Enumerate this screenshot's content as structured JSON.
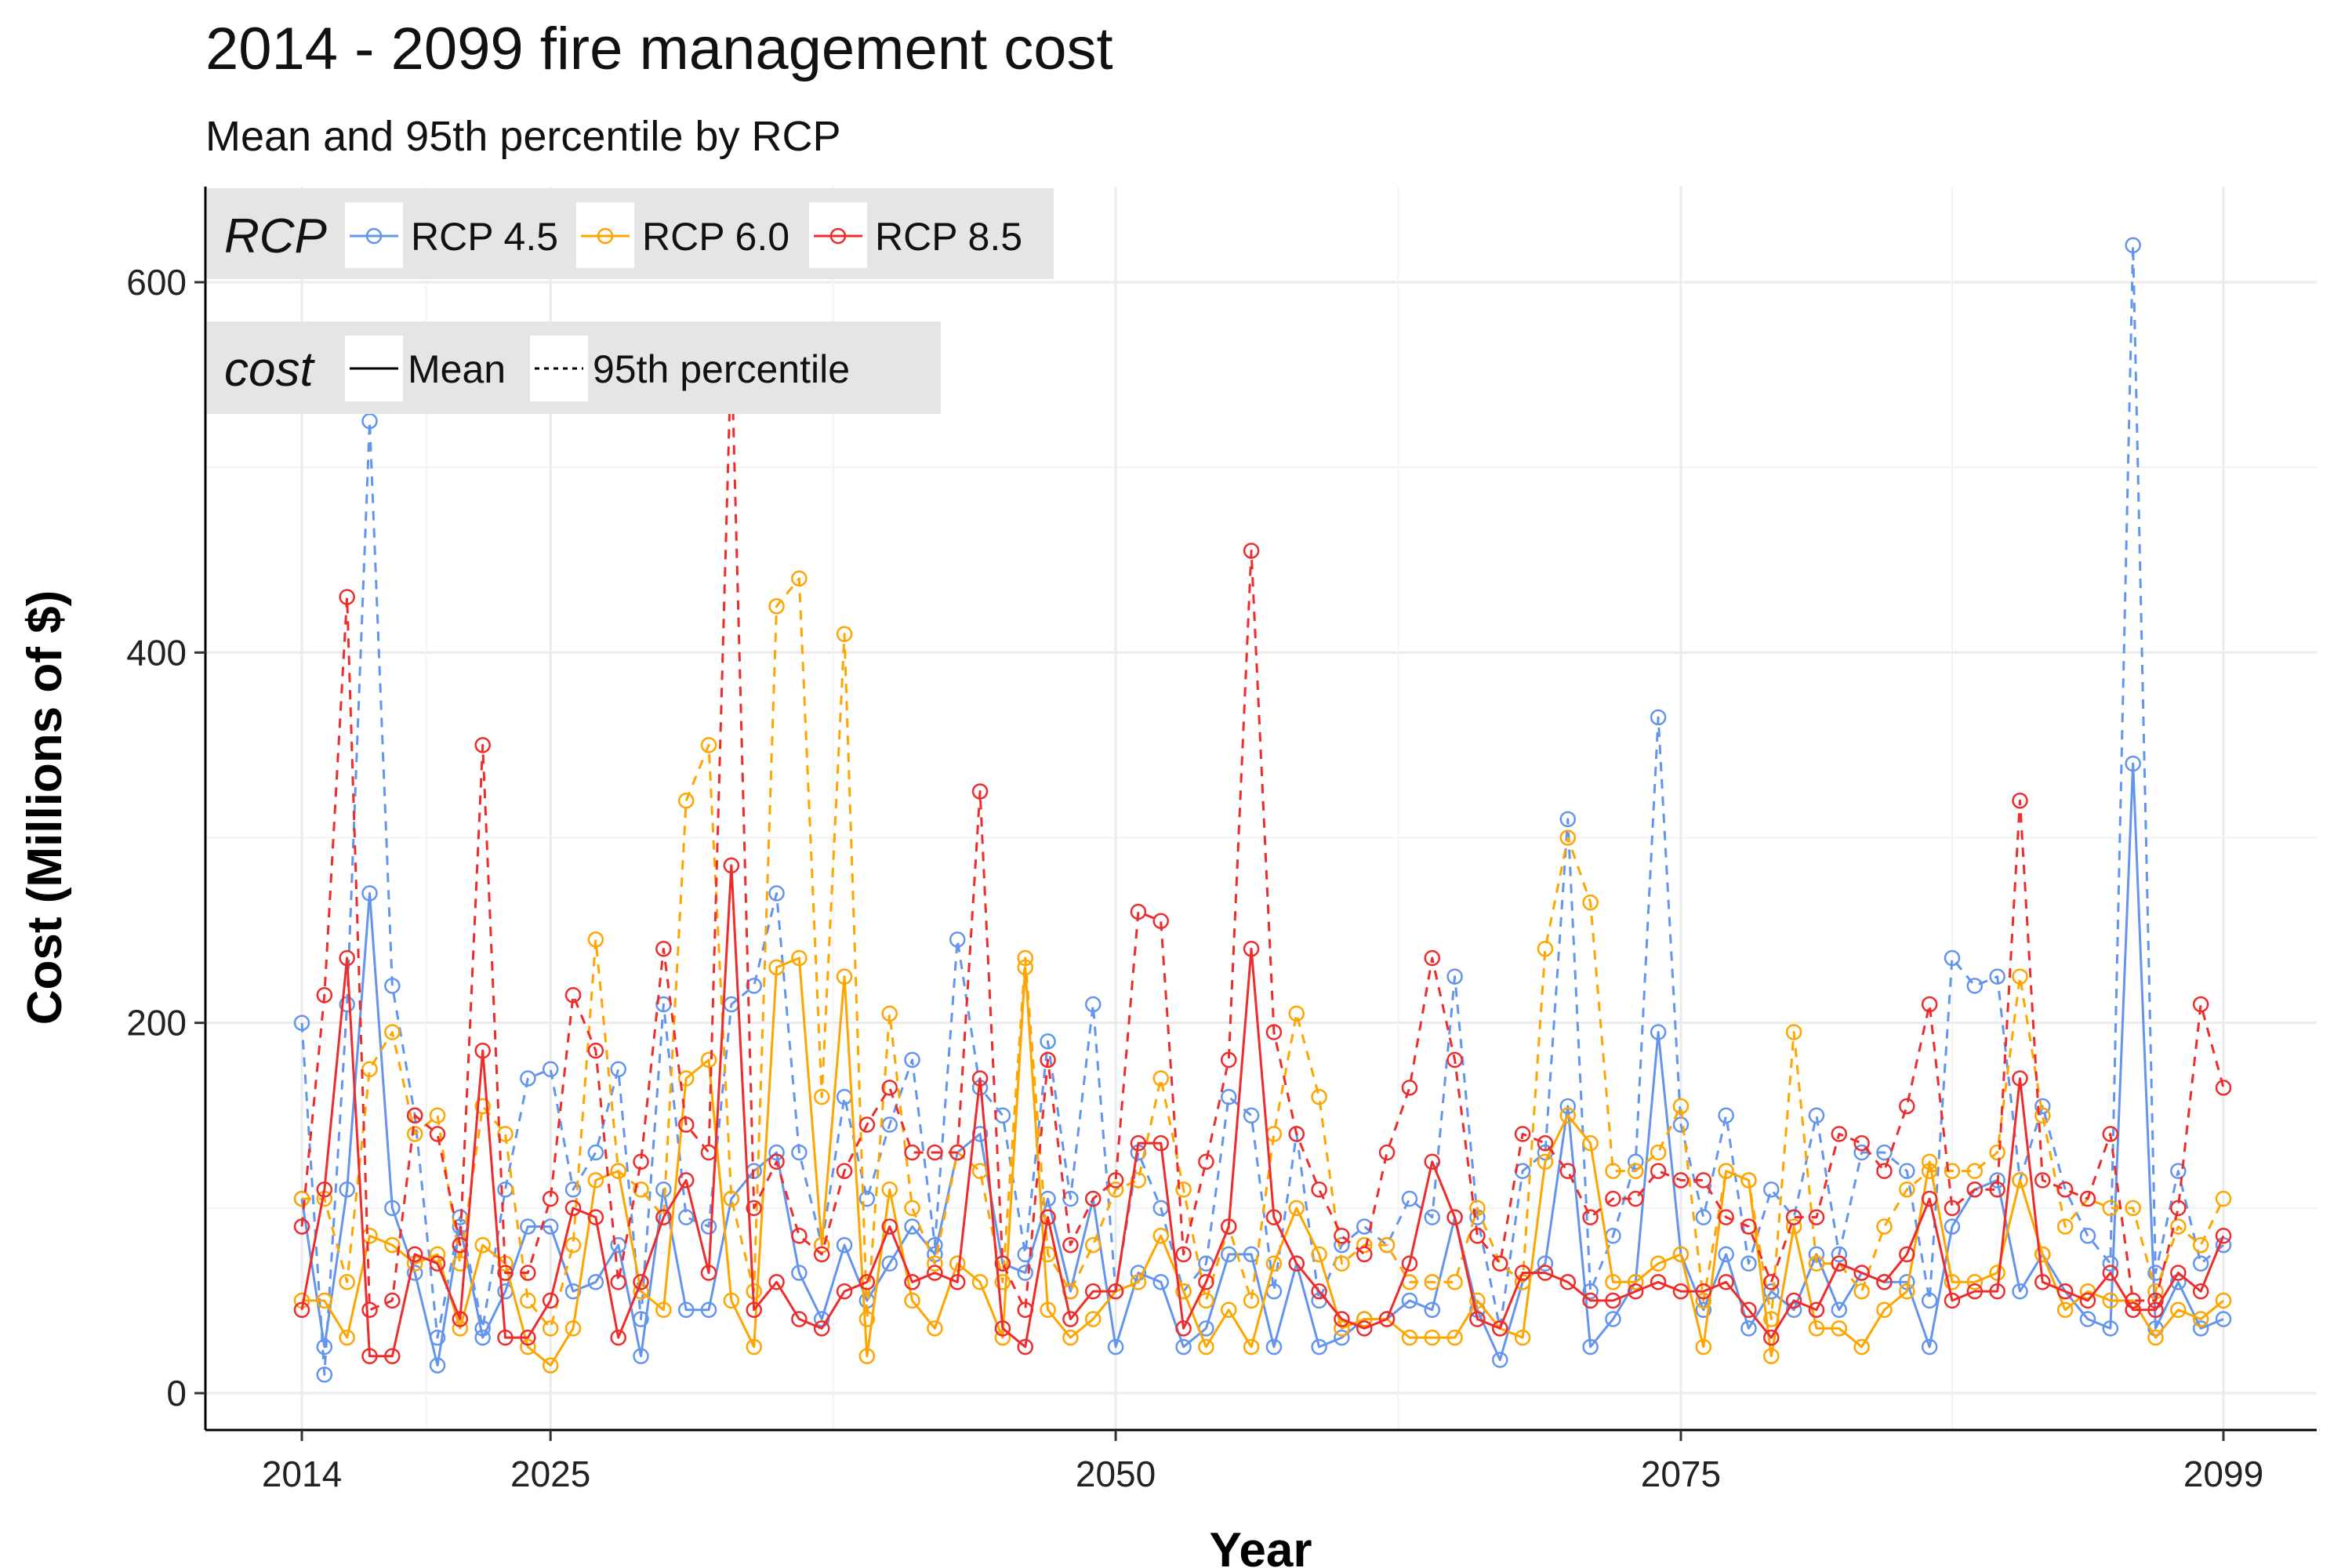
{
  "chart_data": {
    "type": "line",
    "title": "2014 - 2099 fire management cost",
    "subtitle": "Mean and 95th percentile by RCP",
    "xlabel": "Year",
    "ylabel": "Cost (Millions of $)",
    "xlim": [
      2014,
      2099
    ],
    "ylim": [
      0,
      600
    ],
    "x_ticks": [
      2014,
      2025,
      2050,
      2075,
      2099
    ],
    "y_ticks": [
      0,
      200,
      400,
      600
    ],
    "grid": true,
    "legend": {
      "position": "top-left",
      "rcp_title": "RCP",
      "rcp_entries": [
        "RCP 4.5",
        "RCP 6.0",
        "RCP 8.5"
      ],
      "cost_title": "cost",
      "cost_entries": [
        "Mean",
        "95th percentile"
      ]
    },
    "colors": {
      "RCP 4.5": "#6495ed",
      "RCP 6.0": "#ffa500",
      "RCP 8.5": "#ee2c2c"
    },
    "x": [
      2014,
      2015,
      2016,
      2017,
      2018,
      2019,
      2020,
      2021,
      2022,
      2023,
      2024,
      2025,
      2026,
      2027,
      2028,
      2029,
      2030,
      2031,
      2032,
      2033,
      2034,
      2035,
      2036,
      2037,
      2038,
      2039,
      2040,
      2041,
      2042,
      2043,
      2044,
      2045,
      2046,
      2047,
      2048,
      2049,
      2050,
      2051,
      2052,
      2053,
      2054,
      2055,
      2056,
      2057,
      2058,
      2059,
      2060,
      2061,
      2062,
      2063,
      2064,
      2065,
      2066,
      2067,
      2068,
      2069,
      2070,
      2071,
      2072,
      2073,
      2074,
      2075,
      2076,
      2077,
      2078,
      2079,
      2080,
      2081,
      2082,
      2083,
      2084,
      2085,
      2086,
      2087,
      2088,
      2089,
      2090,
      2091,
      2092,
      2093,
      2094,
      2095,
      2096,
      2097,
      2098,
      2099
    ],
    "series": [
      {
        "name": "RCP 4.5",
        "cost": "Mean",
        "values": [
          105,
          25,
          110,
          270,
          100,
          65,
          15,
          90,
          30,
          55,
          90,
          90,
          55,
          60,
          80,
          20,
          110,
          45,
          45,
          105,
          120,
          130,
          65,
          40,
          80,
          50,
          70,
          90,
          75,
          130,
          140,
          70,
          65,
          105,
          55,
          105,
          25,
          65,
          60,
          25,
          35,
          75,
          75,
          25,
          70,
          25,
          30,
          40,
          40,
          50,
          45,
          95,
          45,
          18,
          60,
          70,
          155,
          25,
          40,
          60,
          195,
          75,
          45,
          75,
          35,
          55,
          45,
          75,
          45,
          65,
          60,
          60,
          25,
          90,
          110,
          115,
          55,
          75,
          55,
          40,
          35,
          340,
          35,
          60,
          35,
          40
        ],
        "style": {
          "dash": "",
          "weight": 3
        }
      },
      {
        "name": "RCP 4.5",
        "cost": "95th percentile",
        "values": [
          200,
          10,
          210,
          525,
          220,
          150,
          30,
          95,
          35,
          110,
          170,
          175,
          110,
          130,
          175,
          40,
          210,
          95,
          90,
          210,
          220,
          270,
          130,
          80,
          160,
          105,
          145,
          180,
          80,
          245,
          165,
          150,
          75,
          190,
          105,
          210,
          55,
          130,
          100,
          55,
          70,
          160,
          150,
          55,
          140,
          50,
          80,
          90,
          80,
          105,
          95,
          225,
          95,
          35,
          120,
          130,
          310,
          55,
          85,
          125,
          365,
          145,
          95,
          150,
          70,
          110,
          95,
          150,
          75,
          130,
          130,
          120,
          50,
          235,
          220,
          225,
          115,
          155,
          110,
          85,
          70,
          620,
          65,
          120,
          70,
          80
        ],
        "style": {
          "dash": "12 10",
          "weight": 3
        }
      },
      {
        "name": "RCP 6.0",
        "cost": "Mean",
        "values": [
          50,
          50,
          30,
          85,
          80,
          70,
          75,
          35,
          80,
          70,
          25,
          15,
          35,
          115,
          120,
          55,
          45,
          170,
          180,
          50,
          25,
          230,
          235,
          80,
          225,
          20,
          110,
          50,
          35,
          70,
          60,
          30,
          230,
          45,
          30,
          40,
          55,
          60,
          85,
          55,
          25,
          45,
          25,
          70,
          100,
          75,
          35,
          40,
          40,
          30,
          30,
          30,
          50,
          35,
          30,
          125,
          150,
          135,
          60,
          60,
          70,
          75,
          25,
          120,
          115,
          20,
          90,
          35,
          35,
          25,
          45,
          55,
          125,
          60,
          60,
          65,
          115,
          75,
          45,
          55,
          50,
          50,
          30,
          45,
          40,
          50
        ],
        "style": {
          "dash": "",
          "weight": 3
        }
      },
      {
        "name": "RCP 6.0",
        "cost": "95th percentile",
        "values": [
          105,
          105,
          60,
          175,
          195,
          140,
          150,
          70,
          155,
          140,
          50,
          35,
          80,
          245,
          120,
          110,
          95,
          320,
          350,
          105,
          55,
          425,
          440,
          160,
          410,
          40,
          205,
          100,
          70,
          130,
          120,
          60,
          235,
          75,
          55,
          80,
          110,
          115,
          170,
          110,
          50,
          90,
          50,
          140,
          205,
          160,
          70,
          80,
          80,
          60,
          60,
          60,
          100,
          70,
          60,
          240,
          300,
          265,
          120,
          120,
          130,
          155,
          50,
          120,
          115,
          40,
          195,
          70,
          70,
          55,
          90,
          110,
          120,
          120,
          120,
          130,
          225,
          150,
          90,
          105,
          100,
          100,
          55,
          90,
          80,
          105
        ],
        "style": {
          "dash": "12 10",
          "weight": 3
        }
      },
      {
        "name": "RCP 8.5",
        "cost": "Mean",
        "values": [
          45,
          110,
          235,
          20,
          20,
          75,
          70,
          40,
          185,
          30,
          30,
          50,
          100,
          95,
          30,
          60,
          95,
          115,
          65,
          285,
          45,
          60,
          40,
          35,
          55,
          60,
          90,
          60,
          65,
          60,
          170,
          35,
          25,
          95,
          40,
          55,
          55,
          135,
          135,
          35,
          60,
          90,
          240,
          95,
          70,
          55,
          40,
          35,
          40,
          70,
          125,
          95,
          40,
          35,
          65,
          65,
          60,
          50,
          50,
          55,
          60,
          55,
          55,
          60,
          45,
          30,
          50,
          45,
          70,
          65,
          60,
          75,
          105,
          50,
          55,
          55,
          170,
          60,
          55,
          50,
          65,
          45,
          45,
          65,
          55,
          85
        ],
        "style": {
          "dash": "",
          "weight": 3
        }
      },
      {
        "name": "RCP 8.5",
        "cost": "95th percentile",
        "values": [
          90,
          215,
          430,
          45,
          50,
          150,
          140,
          80,
          350,
          65,
          65,
          105,
          215,
          185,
          60,
          125,
          240,
          145,
          130,
          565,
          100,
          125,
          85,
          75,
          120,
          145,
          165,
          130,
          130,
          130,
          325,
          70,
          45,
          180,
          80,
          105,
          115,
          260,
          255,
          75,
          125,
          180,
          455,
          195,
          140,
          110,
          85,
          75,
          130,
          165,
          235,
          180,
          85,
          70,
          140,
          135,
          120,
          95,
          105,
          105,
          120,
          115,
          115,
          95,
          90,
          60,
          95,
          95,
          140,
          135,
          120,
          155,
          210,
          100,
          110,
          110,
          320,
          115,
          110,
          105,
          140,
          50,
          50,
          100,
          210,
          165
        ],
        "style": {
          "dash": "12 10",
          "weight": 3
        }
      }
    ]
  }
}
